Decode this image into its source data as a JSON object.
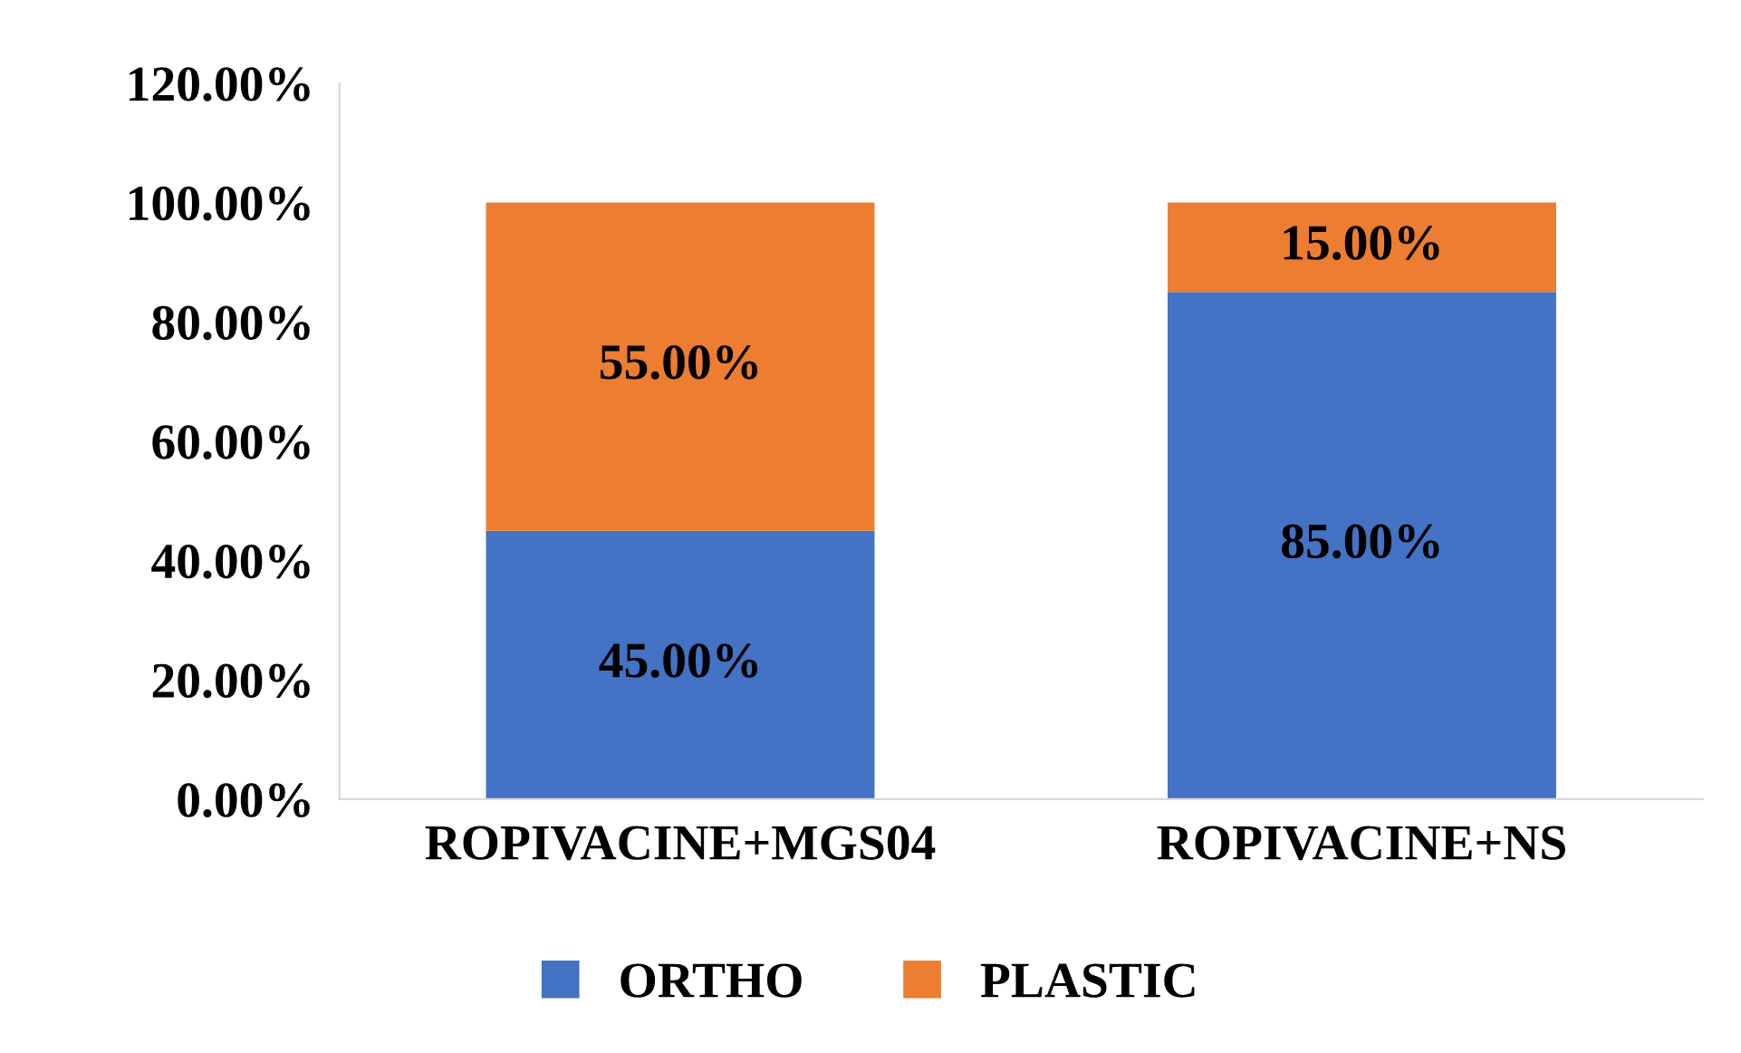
{
  "chart_data": {
    "type": "bar",
    "stacked": true,
    "categories": [
      "ROPIVACINE+MGS04",
      "ROPIVACINE+NS"
    ],
    "series": [
      {
        "name": "ORTHO",
        "color": "#4472c4",
        "values": [
          45,
          85
        ],
        "value_labels": [
          "45.00%",
          "85.00%"
        ]
      },
      {
        "name": "PLASTIC",
        "color": "#ed7d31",
        "values": [
          55,
          15
        ],
        "value_labels": [
          "55.00%",
          "15.00%"
        ]
      }
    ],
    "ylim": [
      0,
      120
    ],
    "yticks": [
      {
        "value": 0,
        "label": "0.00%"
      },
      {
        "value": 20,
        "label": "20.00%"
      },
      {
        "value": 40,
        "label": "40.00%"
      },
      {
        "value": 60,
        "label": "60.00%"
      },
      {
        "value": 80,
        "label": "80.00%"
      },
      {
        "value": 100,
        "label": "100.00%"
      },
      {
        "value": 120,
        "label": "120.00%"
      }
    ],
    "grid": false,
    "legend": "bottom"
  }
}
